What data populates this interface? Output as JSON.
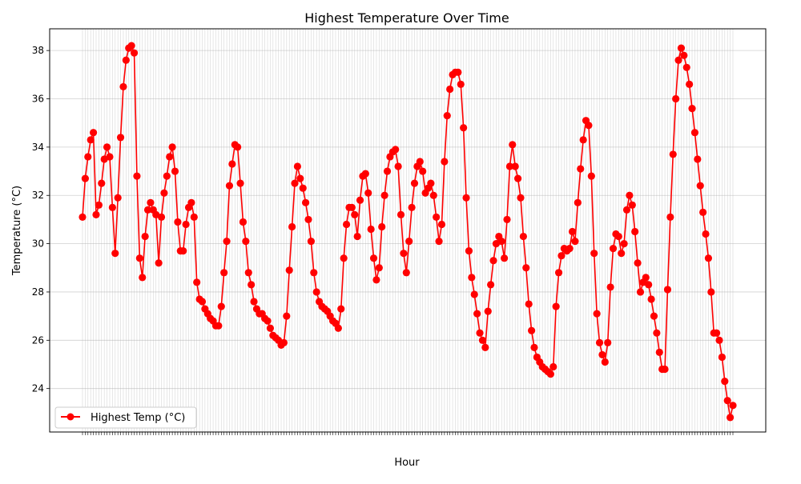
{
  "chart_data": {
    "type": "line",
    "title": "Highest Temperature Over Time",
    "xlabel": "Hour",
    "ylabel": "Temperature (°C)",
    "ylim": [
      22.2,
      38.9
    ],
    "y_ticks": [
      24,
      26,
      28,
      30,
      32,
      34,
      36,
      38
    ],
    "grid": true,
    "legend_position": "bottom-left",
    "x_tick_labels_note": "dense overlapping hour labels (illegible)",
    "series": [
      {
        "name": "Highest Temp (°C)",
        "color": "#ff0000",
        "marker": "circle",
        "values": [
          31.1,
          32.7,
          33.6,
          34.3,
          34.6,
          31.2,
          31.6,
          32.5,
          33.5,
          34.0,
          33.6,
          31.5,
          29.6,
          31.9,
          34.4,
          36.5,
          37.6,
          38.1,
          38.2,
          37.9,
          32.8,
          29.4,
          28.6,
          30.3,
          31.4,
          31.7,
          31.4,
          31.2,
          29.2,
          31.1,
          32.1,
          32.8,
          33.6,
          34.0,
          33.0,
          30.9,
          29.7,
          29.7,
          30.8,
          31.5,
          31.7,
          31.1,
          28.4,
          27.7,
          27.6,
          27.3,
          27.1,
          26.9,
          26.8,
          26.6,
          26.6,
          27.4,
          28.8,
          30.1,
          32.4,
          33.3,
          34.1,
          34.0,
          32.5,
          30.9,
          30.1,
          28.8,
          28.3,
          27.6,
          27.3,
          27.1,
          27.1,
          26.9,
          26.8,
          26.5,
          26.2,
          26.1,
          26.0,
          25.8,
          25.9,
          27.0,
          28.9,
          30.7,
          32.5,
          33.2,
          32.7,
          32.3,
          31.7,
          31.0,
          30.1,
          28.8,
          28.0,
          27.6,
          27.4,
          27.3,
          27.2,
          27.0,
          26.8,
          26.7,
          26.5,
          27.3,
          29.4,
          30.8,
          31.5,
          31.5,
          31.2,
          30.3,
          31.8,
          32.8,
          32.9,
          32.1,
          30.6,
          29.4,
          28.5,
          29.0,
          30.7,
          32.0,
          33.0,
          33.6,
          33.8,
          33.9,
          33.2,
          31.2,
          29.6,
          28.8,
          30.1,
          31.5,
          32.5,
          33.2,
          33.4,
          33.0,
          32.1,
          32.3,
          32.5,
          32.0,
          31.1,
          30.1,
          30.8,
          33.4,
          35.3,
          36.4,
          37.0,
          37.1,
          37.1,
          36.6,
          34.8,
          31.9,
          29.7,
          28.6,
          27.9,
          27.1,
          26.3,
          26.0,
          25.7,
          27.2,
          28.3,
          29.3,
          30.0,
          30.3,
          30.1,
          29.4,
          31.0,
          33.2,
          34.1,
          33.2,
          32.7,
          31.9,
          30.3,
          29.0,
          27.5,
          26.4,
          25.7,
          25.3,
          25.1,
          24.9,
          24.8,
          24.7,
          24.6,
          24.9,
          27.4,
          28.8,
          29.5,
          29.8,
          29.7,
          29.8,
          30.5,
          30.1,
          31.7,
          33.1,
          34.3,
          35.1,
          34.9,
          32.8,
          29.6,
          27.1,
          25.9,
          25.4,
          25.1,
          25.9,
          28.2,
          29.8,
          30.4,
          30.3,
          29.6,
          30.0,
          31.4,
          32.0,
          31.6,
          30.5,
          29.2,
          28.0,
          28.4,
          28.6,
          28.3,
          27.7,
          27.0,
          26.3,
          25.5,
          24.8,
          24.8,
          28.1,
          31.1,
          33.7,
          36.0,
          37.6,
          38.1,
          37.8,
          37.3,
          36.6,
          35.6,
          34.6,
          33.5,
          32.4,
          31.3,
          30.4,
          29.4,
          28.0,
          26.3,
          26.3,
          26.0,
          25.3,
          24.3,
          23.5,
          22.8,
          23.3
        ]
      }
    ]
  }
}
